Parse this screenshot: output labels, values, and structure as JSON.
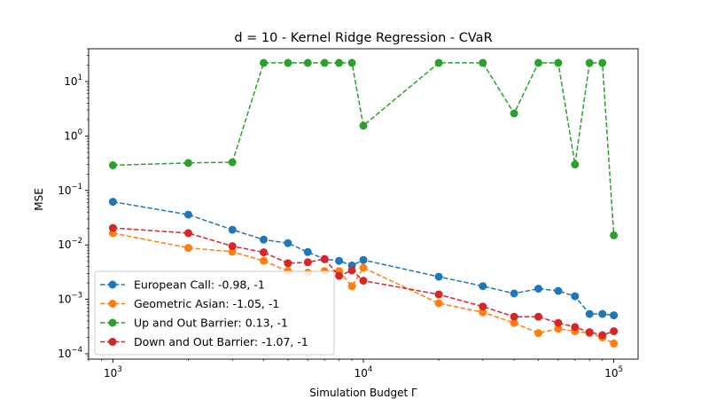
{
  "chart_data": {
    "type": "line",
    "title": "d = 10 - Kernel Ridge Regression - CVaR",
    "xlabel": "Simulation Budget Γ",
    "ylabel": "MSE",
    "xscale": "log",
    "yscale": "log",
    "xlim": [
      800,
      125000
    ],
    "ylim": [
      8e-05,
      40
    ],
    "xticks": [
      {
        "value": 1000,
        "base": "10",
        "exp": "3"
      },
      {
        "value": 10000,
        "base": "10",
        "exp": "4"
      },
      {
        "value": 100000,
        "base": "10",
        "exp": "5"
      }
    ],
    "yticks": [
      {
        "value": 0.0001,
        "base": "10",
        "exp": "−4"
      },
      {
        "value": 0.001,
        "base": "10",
        "exp": "−3"
      },
      {
        "value": 0.01,
        "base": "10",
        "exp": "−2"
      },
      {
        "value": 0.1,
        "base": "10",
        "exp": "−1"
      },
      {
        "value": 1,
        "base": "10",
        "exp": "0"
      },
      {
        "value": 10,
        "base": "10",
        "exp": "1"
      }
    ],
    "grid": false,
    "legend_position": "lower-left",
    "x": [
      1000,
      2000,
      3000,
      4000,
      5000,
      6000,
      7000,
      8000,
      9000,
      10000,
      20000,
      30000,
      40000,
      50000,
      60000,
      70000,
      80000,
      90000,
      100000
    ],
    "series": [
      {
        "name": "European Call: -0.98, -1",
        "color": "#1f77b4",
        "values": [
          0.062,
          0.036,
          0.019,
          0.0125,
          0.0108,
          0.0074,
          0.0055,
          0.0051,
          0.0042,
          0.0053,
          0.0026,
          0.00175,
          0.00128,
          0.00157,
          0.00143,
          0.00114,
          0.00054,
          0.00054,
          0.00051
        ]
      },
      {
        "name": "Geometric Asian: -1.05, -1",
        "color": "#ff7f0e",
        "values": [
          0.0165,
          0.0088,
          0.0075,
          0.0051,
          0.0033,
          0.0031,
          0.0033,
          0.0033,
          0.00175,
          0.0038,
          0.00085,
          0.00058,
          0.00037,
          0.00024,
          0.00029,
          0.00026,
          0.00024,
          0.0002,
          0.000155
        ]
      },
      {
        "name": "Up and Out Barrier: 0.13, -1",
        "color": "#2ca02c",
        "values": [
          0.29,
          0.32,
          0.33,
          22,
          22,
          22,
          22,
          22,
          22,
          1.55,
          22,
          22,
          2.6,
          22,
          22,
          0.3,
          22,
          22,
          0.015
        ]
      },
      {
        "name": "Down and Out Barrier: -1.07, -1",
        "color": "#d62728",
        "values": [
          0.0205,
          0.0165,
          0.0095,
          0.0073,
          0.0046,
          0.0048,
          0.0055,
          0.0027,
          0.0034,
          0.0022,
          0.00123,
          0.00074,
          0.00048,
          0.00048,
          0.00037,
          0.00031,
          0.00025,
          0.00022,
          0.00026
        ]
      }
    ]
  }
}
